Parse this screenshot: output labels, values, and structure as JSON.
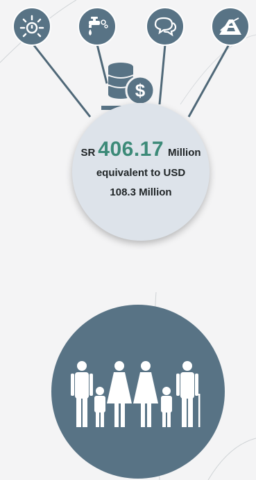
{
  "amount": {
    "currency": "SR",
    "value": "406.17",
    "unit": "Million",
    "equivalent_line1": "equivalent to USD",
    "equivalent_line2": "108.3 Million"
  },
  "icons": [
    "sun-icon",
    "water-tap-icon",
    "chat-bubbles-icon",
    "road-icon",
    "coins-dollar-icon",
    "family-icon"
  ],
  "colors": {
    "icon_bg": "#587385",
    "amount_circle_bg": "#dde3ea",
    "amount_value": "#3c8a78",
    "page_bg": "#f4f4f5"
  }
}
